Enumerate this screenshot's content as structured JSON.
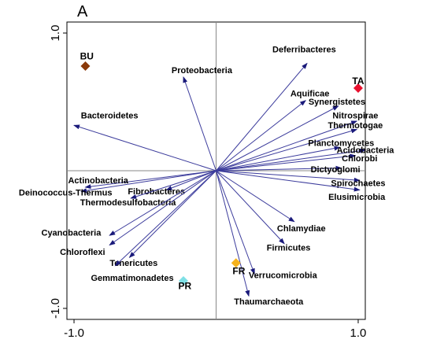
{
  "panel_label": "A",
  "chart_data": {
    "type": "scatter",
    "subtype": "biplot",
    "xlim": [
      -1.05,
      1.05
    ],
    "ylim": [
      -1.08,
      1.08
    ],
    "x_ticks": [
      {
        "value": -1.0,
        "label": "-1.0"
      },
      {
        "value": 1.0,
        "label": "1.0"
      }
    ],
    "y_ticks": [
      {
        "value": 1.0,
        "label": "1.0"
      },
      {
        "value": -1.0,
        "label": "-1.0"
      }
    ],
    "reference_lines": {
      "x": 0,
      "y": 0
    },
    "arrow_color": "#3c3c9c",
    "arrows": [
      {
        "name": "Deferribacteres",
        "x": 0.64,
        "y": 0.78,
        "lx": 0.62,
        "ly": 0.86,
        "anchor": "middle"
      },
      {
        "name": "Proteobacteria",
        "x": -0.23,
        "y": 0.68,
        "lx": -0.1,
        "ly": 0.71,
        "anchor": "middle"
      },
      {
        "name": "Aquificae",
        "x": 0.63,
        "y": 0.51,
        "lx": 0.66,
        "ly": 0.54,
        "anchor": "middle"
      },
      {
        "name": "Synergistetes",
        "x": 0.86,
        "y": 0.47,
        "lx": 0.85,
        "ly": 0.48,
        "anchor": "middle"
      },
      {
        "name": "Bacteroidetes",
        "x": -1.0,
        "y": 0.33,
        "lx": -0.75,
        "ly": 0.38,
        "anchor": "middle"
      },
      {
        "name": "Nitrospirae",
        "x": 0.99,
        "y": 0.36,
        "lx": 0.98,
        "ly": 0.38,
        "anchor": "middle"
      },
      {
        "name": "Thermotogae",
        "x": 0.99,
        "y": 0.3,
        "lx": 0.98,
        "ly": 0.31,
        "anchor": "middle"
      },
      {
        "name": "Planctomycetes",
        "x": 0.87,
        "y": 0.17,
        "lx": 0.88,
        "ly": 0.18,
        "anchor": "middle"
      },
      {
        "name": "Acidobacteria",
        "x": 1.05,
        "y": 0.15,
        "lx": 1.05,
        "ly": 0.13,
        "anchor": "middle"
      },
      {
        "name": "Chlorobi",
        "x": 0.98,
        "y": 0.11,
        "lx": 1.01,
        "ly": 0.07,
        "anchor": "middle"
      },
      {
        "name": "Dictyoglomi",
        "x": 0.88,
        "y": 0.02,
        "lx": 0.84,
        "ly": -0.01,
        "anchor": "middle"
      },
      {
        "name": "Spirochaetes",
        "x": 1.01,
        "y": -0.07,
        "lx": 1.0,
        "ly": -0.11,
        "anchor": "middle"
      },
      {
        "name": "Elusimicrobia",
        "x": 1.01,
        "y": -0.14,
        "lx": 0.99,
        "ly": -0.21,
        "anchor": "middle"
      },
      {
        "name": "Actinobacteria",
        "x": -0.92,
        "y": -0.12,
        "lx": -0.83,
        "ly": -0.09,
        "anchor": "middle"
      },
      {
        "name": "Deinococcus-Thermus",
        "x": -0.95,
        "y": -0.15,
        "lx": -1.06,
        "ly": -0.18,
        "anchor": "middle"
      },
      {
        "name": "Fibrobacteres",
        "x": -0.35,
        "y": -0.14,
        "lx": -0.42,
        "ly": -0.17,
        "anchor": "middle"
      },
      {
        "name": "Thermodesulfobacteria",
        "x": -0.6,
        "y": -0.2,
        "lx": -0.62,
        "ly": -0.25,
        "anchor": "middle"
      },
      {
        "name": "Cyanobacteria",
        "x": -0.75,
        "y": -0.47,
        "lx": -1.02,
        "ly": -0.47,
        "anchor": "middle"
      },
      {
        "name": "Chloroflexi",
        "x": -0.75,
        "y": -0.54,
        "lx": -0.94,
        "ly": -0.61,
        "anchor": "middle"
      },
      {
        "name": "Tenericutes",
        "x": -0.61,
        "y": -0.63,
        "lx": -0.58,
        "ly": -0.69,
        "anchor": "middle"
      },
      {
        "name": "Gemmatimonadetes",
        "x": -0.71,
        "y": -0.69,
        "lx": -0.59,
        "ly": -0.8,
        "anchor": "middle"
      },
      {
        "name": "Chlamydiae",
        "x": 0.55,
        "y": -0.37,
        "lx": 0.6,
        "ly": -0.44,
        "anchor": "middle"
      },
      {
        "name": "Firmicutes",
        "x": 0.48,
        "y": -0.53,
        "lx": 0.51,
        "ly": -0.58,
        "anchor": "middle"
      },
      {
        "name": "Verrucomicrobia",
        "x": 0.27,
        "y": -0.75,
        "lx": 0.47,
        "ly": -0.78,
        "anchor": "middle"
      },
      {
        "name": "Thaumarchaeota",
        "x": 0.23,
        "y": -0.91,
        "lx": 0.37,
        "ly": -0.97,
        "anchor": "middle"
      }
    ],
    "sites": [
      {
        "name": "BU",
        "x": -0.92,
        "y": 0.76,
        "lx": -0.91,
        "ly": 0.81,
        "color": "#8b3a0a"
      },
      {
        "name": "TA",
        "x": 1.0,
        "y": 0.6,
        "lx": 1.0,
        "ly": 0.63,
        "color": "#e8102e"
      },
      {
        "name": "FR",
        "x": 0.14,
        "y": -0.67,
        "lx": 0.16,
        "ly": -0.75,
        "color": "#f5b21c"
      },
      {
        "name": "PR",
        "x": -0.23,
        "y": -0.8,
        "lx": -0.22,
        "ly": -0.86,
        "color": "#7fe0e6"
      }
    ]
  }
}
